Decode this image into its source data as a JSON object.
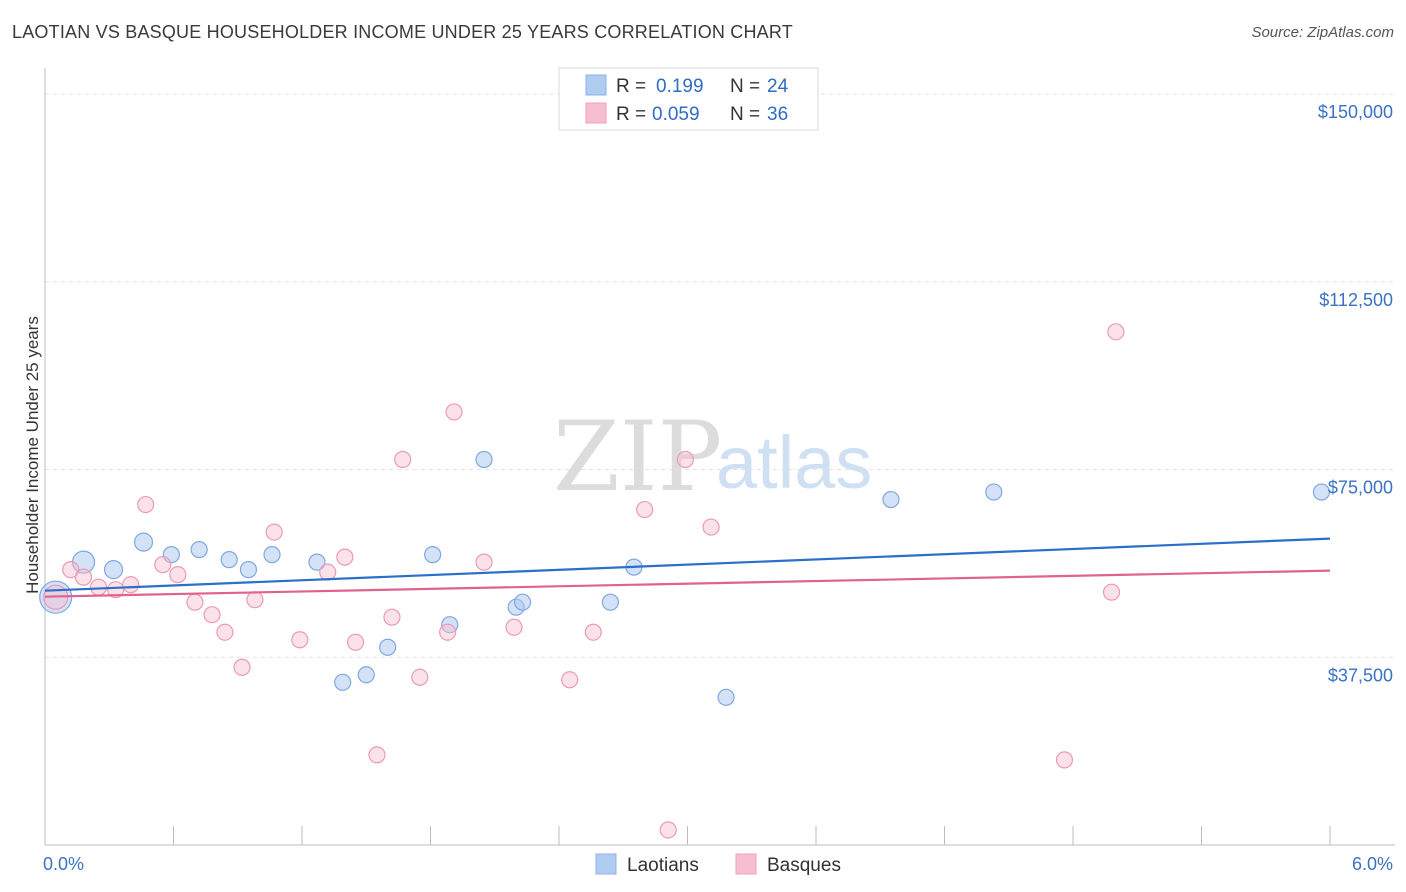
{
  "header": {
    "title": "LAOTIAN VS BASQUE HOUSEHOLDER INCOME UNDER 25 YEARS CORRELATION CHART",
    "source": "Source: ZipAtlas.com"
  },
  "watermark": {
    "zip": "ZIP",
    "atlas": "atlas"
  },
  "legend": {
    "rows": [
      {
        "r_label": "R =",
        "r_value": "0.199",
        "n_label": "N =",
        "n_value": "24",
        "color": "#aecbf0"
      },
      {
        "r_label": "R =",
        "r_value": "0.059",
        "n_label": "N =",
        "n_value": "36",
        "color": "#f7bdd0"
      }
    ]
  },
  "bottom_legend": {
    "items": [
      {
        "label": "Laotians",
        "color": "#aecbf0"
      },
      {
        "label": "Basques",
        "color": "#f7bdd0"
      }
    ]
  },
  "chart_data": {
    "type": "scatter",
    "title": "LAOTIAN VS BASQUE HOUSEHOLDER INCOME UNDER 25 YEARS CORRELATION CHART",
    "ylabel": "Householder Income Under 25 years",
    "xlabel": "",
    "xlim": [
      0,
      6
    ],
    "ylim": [
      0,
      153000
    ],
    "x_tick_labels": [
      "0.0%",
      "6.0%"
    ],
    "y_ticks": [
      37500,
      75000,
      112500,
      150000
    ],
    "y_tick_labels": [
      "$37,500",
      "$75,000",
      "$112,500",
      "$150,000"
    ],
    "grid": true,
    "colors": {
      "laotians": "#aecbf0",
      "laotians_line": "#2a6fca",
      "basques": "#f7bdd0",
      "basques_line": "#e0628f"
    },
    "series": [
      {
        "name": "Laotians",
        "trend": [
          [
            0,
            50800
          ],
          [
            6,
            61200
          ]
        ],
        "points": [
          [
            0.05,
            49500,
            16
          ],
          [
            0.18,
            56500,
            11
          ],
          [
            0.32,
            55000,
            9
          ],
          [
            0.46,
            60500,
            9
          ],
          [
            0.59,
            58000,
            8
          ],
          [
            0.72,
            59000,
            8
          ],
          [
            0.86,
            57000,
            8
          ],
          [
            0.95,
            55000,
            8
          ],
          [
            1.06,
            58000,
            8
          ],
          [
            1.27,
            56500,
            8
          ],
          [
            1.39,
            32500,
            8
          ],
          [
            1.5,
            34000,
            8
          ],
          [
            1.6,
            39500,
            8
          ],
          [
            1.81,
            58000,
            8
          ],
          [
            1.89,
            44000,
            8
          ],
          [
            2.05,
            77000,
            8
          ],
          [
            2.2,
            47500,
            8
          ],
          [
            2.23,
            48500,
            8
          ],
          [
            2.64,
            48500,
            8
          ],
          [
            2.75,
            55500,
            8
          ],
          [
            3.18,
            29500,
            8
          ],
          [
            3.95,
            69000,
            8
          ],
          [
            4.43,
            70500,
            8
          ],
          [
            5.96,
            70500,
            8
          ]
        ]
      },
      {
        "name": "Basques",
        "trend": [
          [
            0,
            49600
          ],
          [
            6,
            54800
          ]
        ],
        "points": [
          [
            0.05,
            49500,
            12
          ],
          [
            0.12,
            55000,
            8
          ],
          [
            0.18,
            53500,
            8
          ],
          [
            0.25,
            51500,
            8
          ],
          [
            0.33,
            51000,
            8
          ],
          [
            0.4,
            52000,
            8
          ],
          [
            0.47,
            68000,
            8
          ],
          [
            0.55,
            56000,
            8
          ],
          [
            0.62,
            54000,
            8
          ],
          [
            0.7,
            48500,
            8
          ],
          [
            0.78,
            46000,
            8
          ],
          [
            0.84,
            42500,
            8
          ],
          [
            0.92,
            35500,
            8
          ],
          [
            0.98,
            49000,
            8
          ],
          [
            1.07,
            62500,
            8
          ],
          [
            1.19,
            41000,
            8
          ],
          [
            1.32,
            54500,
            8
          ],
          [
            1.4,
            57500,
            8
          ],
          [
            1.45,
            40500,
            8
          ],
          [
            1.55,
            18000,
            8
          ],
          [
            1.62,
            45500,
            8
          ],
          [
            1.67,
            77000,
            8
          ],
          [
            1.75,
            33500,
            8
          ],
          [
            1.88,
            42500,
            8
          ],
          [
            1.91,
            86500,
            8
          ],
          [
            2.05,
            56500,
            8
          ],
          [
            2.19,
            43500,
            8
          ],
          [
            2.45,
            33000,
            8
          ],
          [
            2.56,
            42500,
            8
          ],
          [
            2.8,
            67000,
            8
          ],
          [
            2.91,
            3000,
            8
          ],
          [
            2.99,
            77000,
            8
          ],
          [
            3.11,
            63500,
            8
          ],
          [
            4.76,
            17000,
            8
          ],
          [
            4.98,
            50500,
            8
          ],
          [
            5.0,
            102500,
            8
          ]
        ]
      }
    ]
  }
}
